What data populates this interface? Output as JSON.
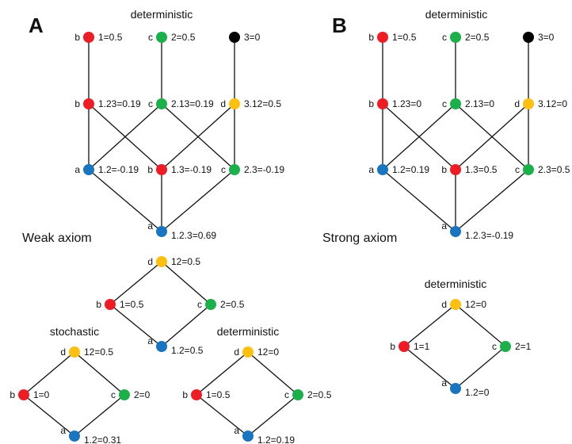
{
  "colors": {
    "red": "#ee1c25",
    "green": "#1cb04a",
    "blue": "#1a75c0",
    "yellow": "#fdc010",
    "black": "#000000",
    "edge": "#111111"
  },
  "panels": [
    {
      "letter": "A",
      "title": "deterministic",
      "section_label": "Weak axiom",
      "nodes": [
        {
          "tag": "b",
          "label": "1=0.5",
          "color": "red"
        },
        {
          "tag": "c",
          "label": "2=0.5",
          "color": "green"
        },
        {
          "tag": "",
          "label": "3=0",
          "color": "black"
        },
        {
          "tag": "b",
          "label": "1.23=0.19",
          "color": "red"
        },
        {
          "tag": "c",
          "label": "2.13=0.19",
          "color": "green"
        },
        {
          "tag": "d",
          "label": "3.12=0.5",
          "color": "yellow"
        },
        {
          "tag": "a",
          "label": "1.2=-0.19",
          "color": "blue"
        },
        {
          "tag": "b",
          "label": "1.3=-0.19",
          "color": "red"
        },
        {
          "tag": "c",
          "label": "2.3=-0.19",
          "color": "green"
        },
        {
          "tag": "a",
          "label": "1.2.3=0.69",
          "color": "blue"
        }
      ]
    },
    {
      "letter": "B",
      "title": "deterministic",
      "section_label": "Strong axiom",
      "nodes": [
        {
          "tag": "b",
          "label": "1=0.5",
          "color": "red"
        },
        {
          "tag": "c",
          "label": "2=0.5",
          "color": "green"
        },
        {
          "tag": "",
          "label": "3=0",
          "color": "black"
        },
        {
          "tag": "b",
          "label": "1.23=0",
          "color": "red"
        },
        {
          "tag": "c",
          "label": "2.13=0",
          "color": "green"
        },
        {
          "tag": "d",
          "label": "3.12=0",
          "color": "yellow"
        },
        {
          "tag": "a",
          "label": "1.2=0.19",
          "color": "blue"
        },
        {
          "tag": "b",
          "label": "1.3=0.5",
          "color": "red"
        },
        {
          "tag": "c",
          "label": "2.3=0.5",
          "color": "green"
        },
        {
          "tag": "a",
          "label": "1.2.3=-0.19",
          "color": "blue"
        }
      ]
    }
  ],
  "diamonds": [
    {
      "title": "",
      "nodes": [
        {
          "tag": "d",
          "label": "12=0.5",
          "color": "yellow"
        },
        {
          "tag": "b",
          "label": "1=0.5",
          "color": "red"
        },
        {
          "tag": "c",
          "label": "2=0.5",
          "color": "green"
        },
        {
          "tag": "a",
          "label": "1.2=0.5",
          "color": "blue"
        }
      ]
    },
    {
      "title": "stochastic",
      "nodes": [
        {
          "tag": "d",
          "label": "12=0.5",
          "color": "yellow"
        },
        {
          "tag": "b",
          "label": "1=0",
          "color": "red"
        },
        {
          "tag": "c",
          "label": "2=0",
          "color": "green"
        },
        {
          "tag": "a",
          "label": "1.2=0.31",
          "color": "blue"
        }
      ]
    },
    {
      "title": "deterministic",
      "nodes": [
        {
          "tag": "d",
          "label": "12=0",
          "color": "yellow"
        },
        {
          "tag": "b",
          "label": "1=0.5",
          "color": "red"
        },
        {
          "tag": "c",
          "label": "2=0.5",
          "color": "green"
        },
        {
          "tag": "a",
          "label": "1.2=0.19",
          "color": "blue"
        }
      ]
    },
    {
      "title": "deterministic",
      "nodes": [
        {
          "tag": "d",
          "label": "12=0",
          "color": "yellow"
        },
        {
          "tag": "b",
          "label": "1=1",
          "color": "red"
        },
        {
          "tag": "c",
          "label": "2=1",
          "color": "green"
        },
        {
          "tag": "a",
          "label": "1.2=0",
          "color": "blue"
        }
      ]
    }
  ]
}
